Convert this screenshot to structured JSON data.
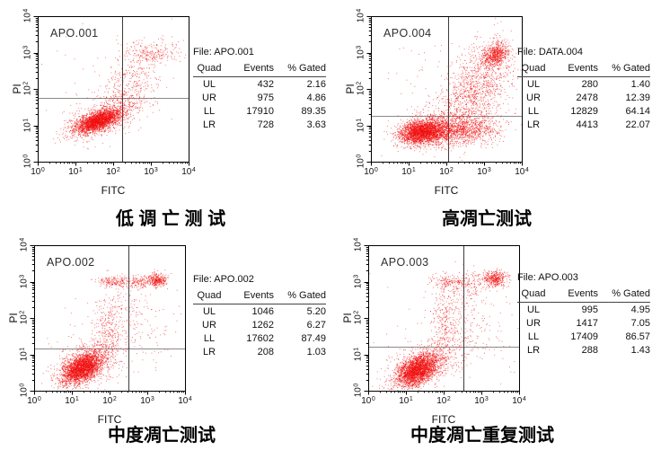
{
  "colors": {
    "dot": "#f00d0d",
    "frame": "#000000",
    "quad_vertical": "#3c3c3c",
    "quad_horizontal": "#8a8a8a",
    "text": "#1a1a1a",
    "background": "#ffffff"
  },
  "panels": [
    {
      "plot_label": "APO.001",
      "file_label": "File: APO.001",
      "title": "低 调 亡 测 试",
      "x_label": "FITC",
      "y_label": "PI",
      "table": {
        "headers": [
          "Quad",
          "Events",
          "% Gated"
        ],
        "rows": [
          [
            "UL",
            "432",
            "2.16"
          ],
          [
            "UR",
            "975",
            "4.86"
          ],
          [
            "LL",
            "17910",
            "89.35"
          ],
          [
            "LR",
            "728",
            "3.63"
          ]
        ]
      }
    },
    {
      "plot_label": "APO.004",
      "file_label": "File: DATA.004",
      "title": "高凋亡测试",
      "x_label": "FITC",
      "y_label": "PI",
      "table": {
        "headers": [
          "Quad",
          "Events",
          "% Gated"
        ],
        "rows": [
          [
            "UL",
            "280",
            "1.40"
          ],
          [
            "UR",
            "2478",
            "12.39"
          ],
          [
            "LL",
            "12829",
            "64.14"
          ],
          [
            "LR",
            "4413",
            "22.07"
          ]
        ]
      }
    },
    {
      "plot_label": "APO.002",
      "file_label": "File: APO.002",
      "title": "中度凋亡测试",
      "x_label": "FITC",
      "y_label": "PI",
      "table": {
        "headers": [
          "Quad",
          "Events",
          "% Gated"
        ],
        "rows": [
          [
            "UL",
            "1046",
            "5.20"
          ],
          [
            "UR",
            "1262",
            "6.27"
          ],
          [
            "LL",
            "17602",
            "87.49"
          ],
          [
            "LR",
            "208",
            "1.03"
          ]
        ]
      }
    },
    {
      "plot_label": "APO.003",
      "file_label": "File: APO.003",
      "title": "中度凋亡重复测试",
      "x_label": "FITC",
      "y_label": "PI",
      "table": {
        "headers": [
          "Quad",
          "Events",
          "% Gated"
        ],
        "rows": [
          [
            "UL",
            "995",
            "4.95"
          ],
          [
            "UR",
            "1417",
            "7.05"
          ],
          [
            "LL",
            "17409",
            "86.57"
          ],
          [
            "LR",
            "288",
            "1.43"
          ]
        ]
      }
    }
  ],
  "chart_data": [
    {
      "type": "scatter",
      "dataset": "APO.001",
      "file": "APO.001",
      "title": "低 调 亡 测 试",
      "xlabel": "FITC",
      "ylabel": "PI",
      "x_scale": "log",
      "y_scale": "log",
      "xlim": [
        1,
        10000
      ],
      "ylim": [
        1,
        10000
      ],
      "tick_base": "10",
      "tick_exponents": [
        0,
        1,
        2,
        3,
        4
      ],
      "quadrant_gates": {
        "x_log": 2.23,
        "y_log": 1.75,
        "x_value": 170,
        "y_value": 56
      },
      "quad_stats": [
        {
          "quad": "UL",
          "events": 432,
          "pct_gated": 2.16
        },
        {
          "quad": "UR",
          "events": 975,
          "pct_gated": 4.86
        },
        {
          "quad": "LL",
          "events": 17910,
          "pct_gated": 89.35
        },
        {
          "quad": "LR",
          "events": 728,
          "pct_gated": 3.63
        }
      ],
      "clusters": [
        {
          "n": 2400,
          "cx": 1.6,
          "cy": 1.13,
          "sx": 0.3,
          "sy": 0.16,
          "rho": 0.6
        },
        {
          "n": 700,
          "cx": 1.7,
          "cy": 1.22,
          "sx": 0.5,
          "sy": 0.3,
          "rho": 0.55
        },
        {
          "n": 230,
          "cx": 2.95,
          "cy": 3.0,
          "sx": 0.42,
          "sy": 0.16,
          "rho": 0
        },
        {
          "n": 240,
          "cx": 2.65,
          "cy": 2.35,
          "sx": 0.45,
          "sy": 0.4,
          "rho": 0.3
        },
        {
          "n": 150,
          "cx": 2.35,
          "cy": 1.7,
          "sx": 0.35,
          "sy": 0.28,
          "rho": 0.2
        },
        {
          "n": 60,
          "cx": 2.0,
          "cy": 2.0,
          "sx": 0.9,
          "sy": 0.85,
          "rho": 0
        }
      ]
    },
    {
      "type": "scatter",
      "dataset": "APO.004",
      "file": "DATA.004",
      "title": "高凋亡测试",
      "xlabel": "FITC",
      "ylabel": "PI",
      "x_scale": "log",
      "y_scale": "log",
      "xlim": [
        1,
        10000
      ],
      "ylim": [
        1,
        10000
      ],
      "tick_base": "10",
      "tick_exponents": [
        0,
        1,
        2,
        3,
        4
      ],
      "quadrant_gates": {
        "x_log": 2.05,
        "y_log": 1.25,
        "x_value": 112,
        "y_value": 18
      },
      "quad_stats": [
        {
          "quad": "UL",
          "events": 280,
          "pct_gated": 1.4
        },
        {
          "quad": "UR",
          "events": 2478,
          "pct_gated": 12.39
        },
        {
          "quad": "LL",
          "events": 12829,
          "pct_gated": 64.14
        },
        {
          "quad": "LR",
          "events": 4413,
          "pct_gated": 22.07
        }
      ],
      "clusters": [
        {
          "n": 2300,
          "cx": 1.33,
          "cy": 0.83,
          "sx": 0.28,
          "sy": 0.17,
          "rho": 0.2
        },
        {
          "n": 1400,
          "cx": 1.9,
          "cy": 0.85,
          "sx": 0.5,
          "sy": 0.19,
          "rho": 0
        },
        {
          "n": 500,
          "cx": 2.7,
          "cy": 0.95,
          "sx": 0.4,
          "sy": 0.25,
          "rho": 0.1
        },
        {
          "n": 650,
          "cx": 3.3,
          "cy": 2.95,
          "sx": 0.17,
          "sy": 0.16,
          "rho": 0.3
        },
        {
          "n": 900,
          "cx": 2.9,
          "cy": 2.25,
          "sx": 0.45,
          "sy": 0.55,
          "rho": 0.35
        },
        {
          "n": 350,
          "cx": 2.4,
          "cy": 1.55,
          "sx": 0.45,
          "sy": 0.4,
          "rho": 0.2
        },
        {
          "n": 80,
          "cx": 2.0,
          "cy": 2.0,
          "sx": 0.9,
          "sy": 0.9,
          "rho": 0
        }
      ]
    },
    {
      "type": "scatter",
      "dataset": "APO.002",
      "file": "APO.002",
      "title": "中度凋亡测试",
      "xlabel": "FITC",
      "ylabel": "PI",
      "x_scale": "log",
      "y_scale": "log",
      "xlim": [
        1,
        10000
      ],
      "ylim": [
        1,
        10000
      ],
      "tick_base": "10",
      "tick_exponents": [
        0,
        1,
        2,
        3,
        4
      ],
      "quadrant_gates": {
        "x_log": 2.5,
        "y_log": 1.17,
        "x_value": 316,
        "y_value": 15
      },
      "quad_stats": [
        {
          "quad": "UL",
          "events": 1046,
          "pct_gated": 5.2
        },
        {
          "quad": "UR",
          "events": 1262,
          "pct_gated": 6.27
        },
        {
          "quad": "LL",
          "events": 17602,
          "pct_gated": 87.49
        },
        {
          "quad": "LR",
          "events": 208,
          "pct_gated": 1.03
        }
      ],
      "clusters": [
        {
          "n": 2700,
          "cx": 1.26,
          "cy": 0.62,
          "sx": 0.26,
          "sy": 0.22,
          "rho": 0.45
        },
        {
          "n": 500,
          "cx": 1.45,
          "cy": 0.8,
          "sx": 0.45,
          "sy": 0.35,
          "rho": 0.4
        },
        {
          "n": 260,
          "cx": 1.95,
          "cy": 1.6,
          "sx": 0.17,
          "sy": 0.55,
          "rho": 0
        },
        {
          "n": 170,
          "cx": 2.1,
          "cy": 3.0,
          "sx": 0.22,
          "sy": 0.07,
          "rho": 0
        },
        {
          "n": 140,
          "cx": 2.75,
          "cy": 3.0,
          "sx": 0.2,
          "sy": 0.09,
          "rho": 0
        },
        {
          "n": 330,
          "cx": 3.25,
          "cy": 3.05,
          "sx": 0.13,
          "sy": 0.09,
          "rho": 0
        },
        {
          "n": 130,
          "cx": 2.3,
          "cy": 2.3,
          "sx": 0.35,
          "sy": 0.5,
          "rho": 0
        },
        {
          "n": 90,
          "cx": 2.85,
          "cy": 1.6,
          "sx": 0.45,
          "sy": 0.55,
          "rho": 0
        },
        {
          "n": 50,
          "cx": 2.0,
          "cy": 2.0,
          "sx": 0.9,
          "sy": 0.9,
          "rho": 0
        }
      ]
    },
    {
      "type": "scatter",
      "dataset": "APO.003",
      "file": "APO.003",
      "title": "中度凋亡重复测试",
      "xlabel": "FITC",
      "ylabel": "PI",
      "x_scale": "log",
      "y_scale": "log",
      "xlim": [
        1,
        10000
      ],
      "ylim": [
        1,
        10000
      ],
      "tick_base": "10",
      "tick_exponents": [
        0,
        1,
        2,
        3,
        4
      ],
      "quadrant_gates": {
        "x_log": 2.52,
        "y_log": 1.22,
        "x_value": 331,
        "y_value": 17
      },
      "quad_stats": [
        {
          "quad": "UL",
          "events": 995,
          "pct_gated": 4.95
        },
        {
          "quad": "UR",
          "events": 1417,
          "pct_gated": 7.05
        },
        {
          "quad": "LL",
          "events": 17409,
          "pct_gated": 86.57
        },
        {
          "quad": "LR",
          "events": 288,
          "pct_gated": 1.43
        }
      ],
      "clusters": [
        {
          "n": 2700,
          "cx": 1.3,
          "cy": 0.57,
          "sx": 0.28,
          "sy": 0.22,
          "rho": 0.45
        },
        {
          "n": 500,
          "cx": 1.5,
          "cy": 0.78,
          "sx": 0.48,
          "sy": 0.33,
          "rho": 0.4
        },
        {
          "n": 270,
          "cx": 2.0,
          "cy": 1.7,
          "sx": 0.19,
          "sy": 0.55,
          "rho": 0
        },
        {
          "n": 160,
          "cx": 2.15,
          "cy": 3.0,
          "sx": 0.24,
          "sy": 0.09,
          "rho": 0
        },
        {
          "n": 120,
          "cx": 2.7,
          "cy": 2.9,
          "sx": 0.2,
          "sy": 0.2,
          "rho": 0
        },
        {
          "n": 400,
          "cx": 3.35,
          "cy": 3.1,
          "sx": 0.15,
          "sy": 0.1,
          "rho": 0
        },
        {
          "n": 150,
          "cx": 2.4,
          "cy": 2.2,
          "sx": 0.38,
          "sy": 0.5,
          "rho": 0
        },
        {
          "n": 100,
          "cx": 2.9,
          "cy": 1.6,
          "sx": 0.48,
          "sy": 0.55,
          "rho": 0
        },
        {
          "n": 50,
          "cx": 2.0,
          "cy": 2.0,
          "sx": 0.9,
          "sy": 0.9,
          "rho": 0
        }
      ]
    }
  ]
}
